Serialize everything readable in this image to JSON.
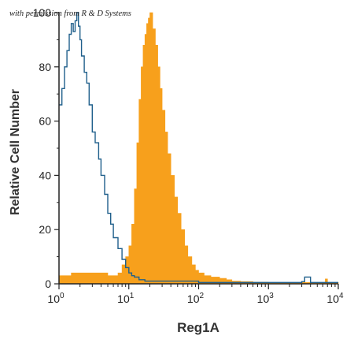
{
  "watermark": "with permission from R & D Systems",
  "chart_data": {
    "type": "area",
    "title": "",
    "xlabel": "Reg1A",
    "ylabel": "Relative Cell Number",
    "xscale": "log",
    "xlim": [
      1,
      10000
    ],
    "ylim": [
      0,
      100
    ],
    "x_ticks": [
      1,
      10,
      100,
      1000,
      10000
    ],
    "x_tick_labels": [
      {
        "base": "10",
        "exp": "0"
      },
      {
        "base": "10",
        "exp": "1"
      },
      {
        "base": "10",
        "exp": "2"
      },
      {
        "base": "10",
        "exp": "3"
      },
      {
        "base": "10",
        "exp": "4"
      }
    ],
    "y_ticks": [
      0,
      20,
      40,
      60,
      80,
      100
    ],
    "y_tick_labels": [
      "0",
      "20",
      "40",
      "60",
      "80",
      "100"
    ],
    "grid": false,
    "legend": "none",
    "series": [
      {
        "style": "filled",
        "color": "#f7a01c",
        "x": [
          1,
          1.5,
          2,
          3,
          4,
          5,
          6,
          7,
          8,
          9,
          10,
          11,
          12,
          13,
          14,
          15,
          16,
          17,
          18,
          19,
          20,
          22,
          24,
          26,
          28,
          30,
          33,
          36,
          40,
          45,
          50,
          56,
          63,
          70,
          80,
          90,
          100,
          120,
          150,
          200,
          250,
          300,
          400,
          600,
          1000,
          2000,
          5000,
          6500,
          7000,
          10000
        ],
        "y": [
          3,
          4,
          4,
          4,
          4,
          3,
          3,
          4,
          7,
          10,
          14,
          22,
          35,
          52,
          68,
          80,
          88,
          92,
          96,
          98,
          100,
          94,
          88,
          80,
          72,
          64,
          56,
          48,
          40,
          32,
          26,
          20,
          14,
          10,
          7,
          5,
          4,
          3,
          2.5,
          2,
          1.5,
          1,
          0.8,
          0.6,
          0.5,
          0.5,
          0.4,
          1.8,
          0.5,
          0.5
        ]
      },
      {
        "style": "outline",
        "color": "#1f5f8b",
        "x": [
          1,
          1.1,
          1.2,
          1.3,
          1.4,
          1.5,
          1.6,
          1.7,
          1.8,
          1.9,
          2,
          2.1,
          2.3,
          2.5,
          2.7,
          3,
          3.3,
          3.7,
          4,
          4.5,
          5,
          5.5,
          6,
          7,
          8,
          9,
          10,
          11,
          12,
          14,
          17,
          20,
          30,
          50,
          100,
          200,
          500,
          1000,
          2000,
          3000,
          3300,
          4000,
          10000
        ],
        "y": [
          66,
          72,
          80,
          86,
          92,
          96,
          93,
          97,
          100,
          95,
          90,
          84,
          78,
          74,
          66,
          56,
          52,
          46,
          40,
          33,
          26,
          22,
          17,
          13,
          9,
          6,
          4,
          3,
          2.5,
          1.5,
          1,
          1,
          1,
          1,
          0.5,
          0.5,
          0.5,
          0.5,
          0.5,
          0.8,
          2.5,
          0.5,
          0.5
        ]
      }
    ]
  }
}
